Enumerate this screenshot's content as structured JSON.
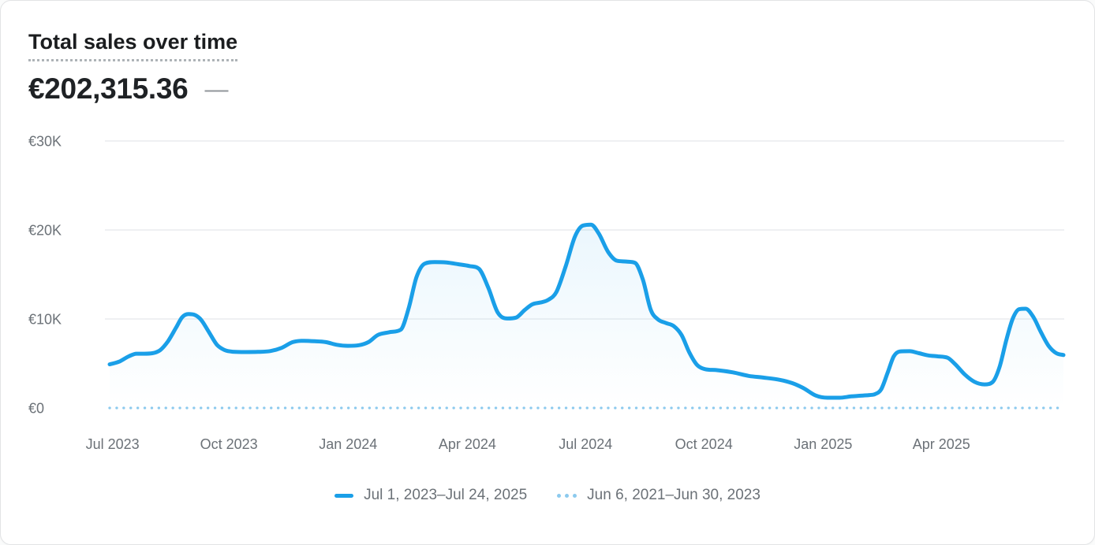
{
  "header": {
    "title": "Total sales over time",
    "value": "€202,315.36",
    "change": "—"
  },
  "colors": {
    "accent_blue": "#1a9fe8",
    "comparison_blue": "#8ccaee",
    "grid_line": "#eaecee",
    "axis_text": "#6b7177",
    "title_text": "#1b1d1f",
    "value_text": "#1f2225",
    "change_text": "#90959a",
    "underline_dots": "#aeb3b7",
    "card_border": "#e2e3e5"
  },
  "chart_data": {
    "type": "line",
    "title": "Total sales over time",
    "total_label": "€202,315.36",
    "currency": "EUR",
    "ylim": [
      0,
      30000
    ],
    "grid": "horizontal",
    "legend_position": "bottom",
    "y_ticks": [
      {
        "value": 0,
        "label": "€0"
      },
      {
        "value": 10000,
        "label": "€10K"
      },
      {
        "value": 20000,
        "label": "€20K"
      },
      {
        "value": 30000,
        "label": "€30K"
      }
    ],
    "x_ticks": [
      {
        "t": 0.003,
        "label": "Jul 2023"
      },
      {
        "t": 0.125,
        "label": "Oct 2023"
      },
      {
        "t": 0.25,
        "label": "Jan 2024"
      },
      {
        "t": 0.375,
        "label": "Apr 2024"
      },
      {
        "t": 0.499,
        "label": "Jul 2024"
      },
      {
        "t": 0.623,
        "label": "Oct 2024"
      },
      {
        "t": 0.748,
        "label": "Jan 2025"
      },
      {
        "t": 0.872,
        "label": "Apr 2025"
      }
    ],
    "series": [
      {
        "name": "Jul 1, 2023–Jul 24, 2025",
        "style": "solid",
        "color": "#1a9fe8",
        "area_fill": true,
        "points": [
          [
            0.0,
            4900
          ],
          [
            0.0099,
            5200
          ],
          [
            0.0199,
            5800
          ],
          [
            0.0281,
            6100
          ],
          [
            0.0364,
            6100
          ],
          [
            0.0447,
            6150
          ],
          [
            0.0529,
            6500
          ],
          [
            0.0612,
            7500
          ],
          [
            0.0695,
            9000
          ],
          [
            0.0761,
            10200
          ],
          [
            0.0827,
            10550
          ],
          [
            0.0893,
            10450
          ],
          [
            0.0959,
            9900
          ],
          [
            0.1042,
            8500
          ],
          [
            0.1125,
            7100
          ],
          [
            0.1208,
            6500
          ],
          [
            0.129,
            6320
          ],
          [
            0.1423,
            6280
          ],
          [
            0.1555,
            6300
          ],
          [
            0.1687,
            6400
          ],
          [
            0.1803,
            6750
          ],
          [
            0.1919,
            7400
          ],
          [
            0.2035,
            7550
          ],
          [
            0.2151,
            7500
          ],
          [
            0.2266,
            7400
          ],
          [
            0.2382,
            7100
          ],
          [
            0.2498,
            6980
          ],
          [
            0.2614,
            7050
          ],
          [
            0.2713,
            7400
          ],
          [
            0.2812,
            8200
          ],
          [
            0.2928,
            8500
          ],
          [
            0.3052,
            8800
          ],
          [
            0.3135,
            11200
          ],
          [
            0.3217,
            14700
          ],
          [
            0.33,
            16200
          ],
          [
            0.3408,
            16400
          ],
          [
            0.3532,
            16350
          ],
          [
            0.3656,
            16150
          ],
          [
            0.3772,
            15950
          ],
          [
            0.3871,
            15650
          ],
          [
            0.397,
            13500
          ],
          [
            0.407,
            10700
          ],
          [
            0.4169,
            10050
          ],
          [
            0.426,
            10150
          ],
          [
            0.4351,
            11000
          ],
          [
            0.4433,
            11650
          ],
          [
            0.4516,
            11850
          ],
          [
            0.4599,
            12150
          ],
          [
            0.4682,
            13000
          ],
          [
            0.4781,
            15900
          ],
          [
            0.488,
            19300
          ],
          [
            0.4963,
            20500
          ],
          [
            0.5046,
            20600
          ],
          [
            0.5128,
            19600
          ],
          [
            0.5228,
            17500
          ],
          [
            0.5318,
            16550
          ],
          [
            0.5418,
            16450
          ],
          [
            0.5509,
            16300
          ],
          [
            0.5591,
            14400
          ],
          [
            0.5674,
            11000
          ],
          [
            0.5749,
            9950
          ],
          [
            0.5831,
            9550
          ],
          [
            0.5914,
            9200
          ],
          [
            0.5996,
            8200
          ],
          [
            0.6079,
            6200
          ],
          [
            0.6162,
            4800
          ],
          [
            0.6245,
            4350
          ],
          [
            0.6369,
            4250
          ],
          [
            0.6534,
            4000
          ],
          [
            0.67,
            3600
          ],
          [
            0.6865,
            3400
          ],
          [
            0.7031,
            3150
          ],
          [
            0.7155,
            2800
          ],
          [
            0.7279,
            2200
          ],
          [
            0.7403,
            1400
          ],
          [
            0.7527,
            1150
          ],
          [
            0.7651,
            1150
          ],
          [
            0.7775,
            1300
          ],
          [
            0.7899,
            1400
          ],
          [
            0.7966,
            1450
          ],
          [
            0.8023,
            1550
          ],
          [
            0.8089,
            2100
          ],
          [
            0.8155,
            3900
          ],
          [
            0.8221,
            5800
          ],
          [
            0.8287,
            6350
          ],
          [
            0.8387,
            6380
          ],
          [
            0.8486,
            6150
          ],
          [
            0.8585,
            5900
          ],
          [
            0.8684,
            5800
          ],
          [
            0.8784,
            5650
          ],
          [
            0.8866,
            4900
          ],
          [
            0.8966,
            3750
          ],
          [
            0.9065,
            2950
          ],
          [
            0.9173,
            2650
          ],
          [
            0.9256,
            2900
          ],
          [
            0.933,
            4600
          ],
          [
            0.9405,
            7800
          ],
          [
            0.9471,
            10100
          ],
          [
            0.9537,
            11100
          ],
          [
            0.9603,
            11150
          ],
          [
            0.9686,
            10200
          ],
          [
            0.976,
            8600
          ],
          [
            0.9843,
            7000
          ],
          [
            0.9926,
            6150
          ],
          [
            1.0,
            5950
          ]
        ]
      },
      {
        "name": "Jun 6, 2021–Jun 30, 2023",
        "style": "dotted",
        "color": "#8ccaee",
        "area_fill": false,
        "points": [
          [
            0.0,
            0
          ],
          [
            1.0,
            0
          ]
        ]
      }
    ]
  }
}
